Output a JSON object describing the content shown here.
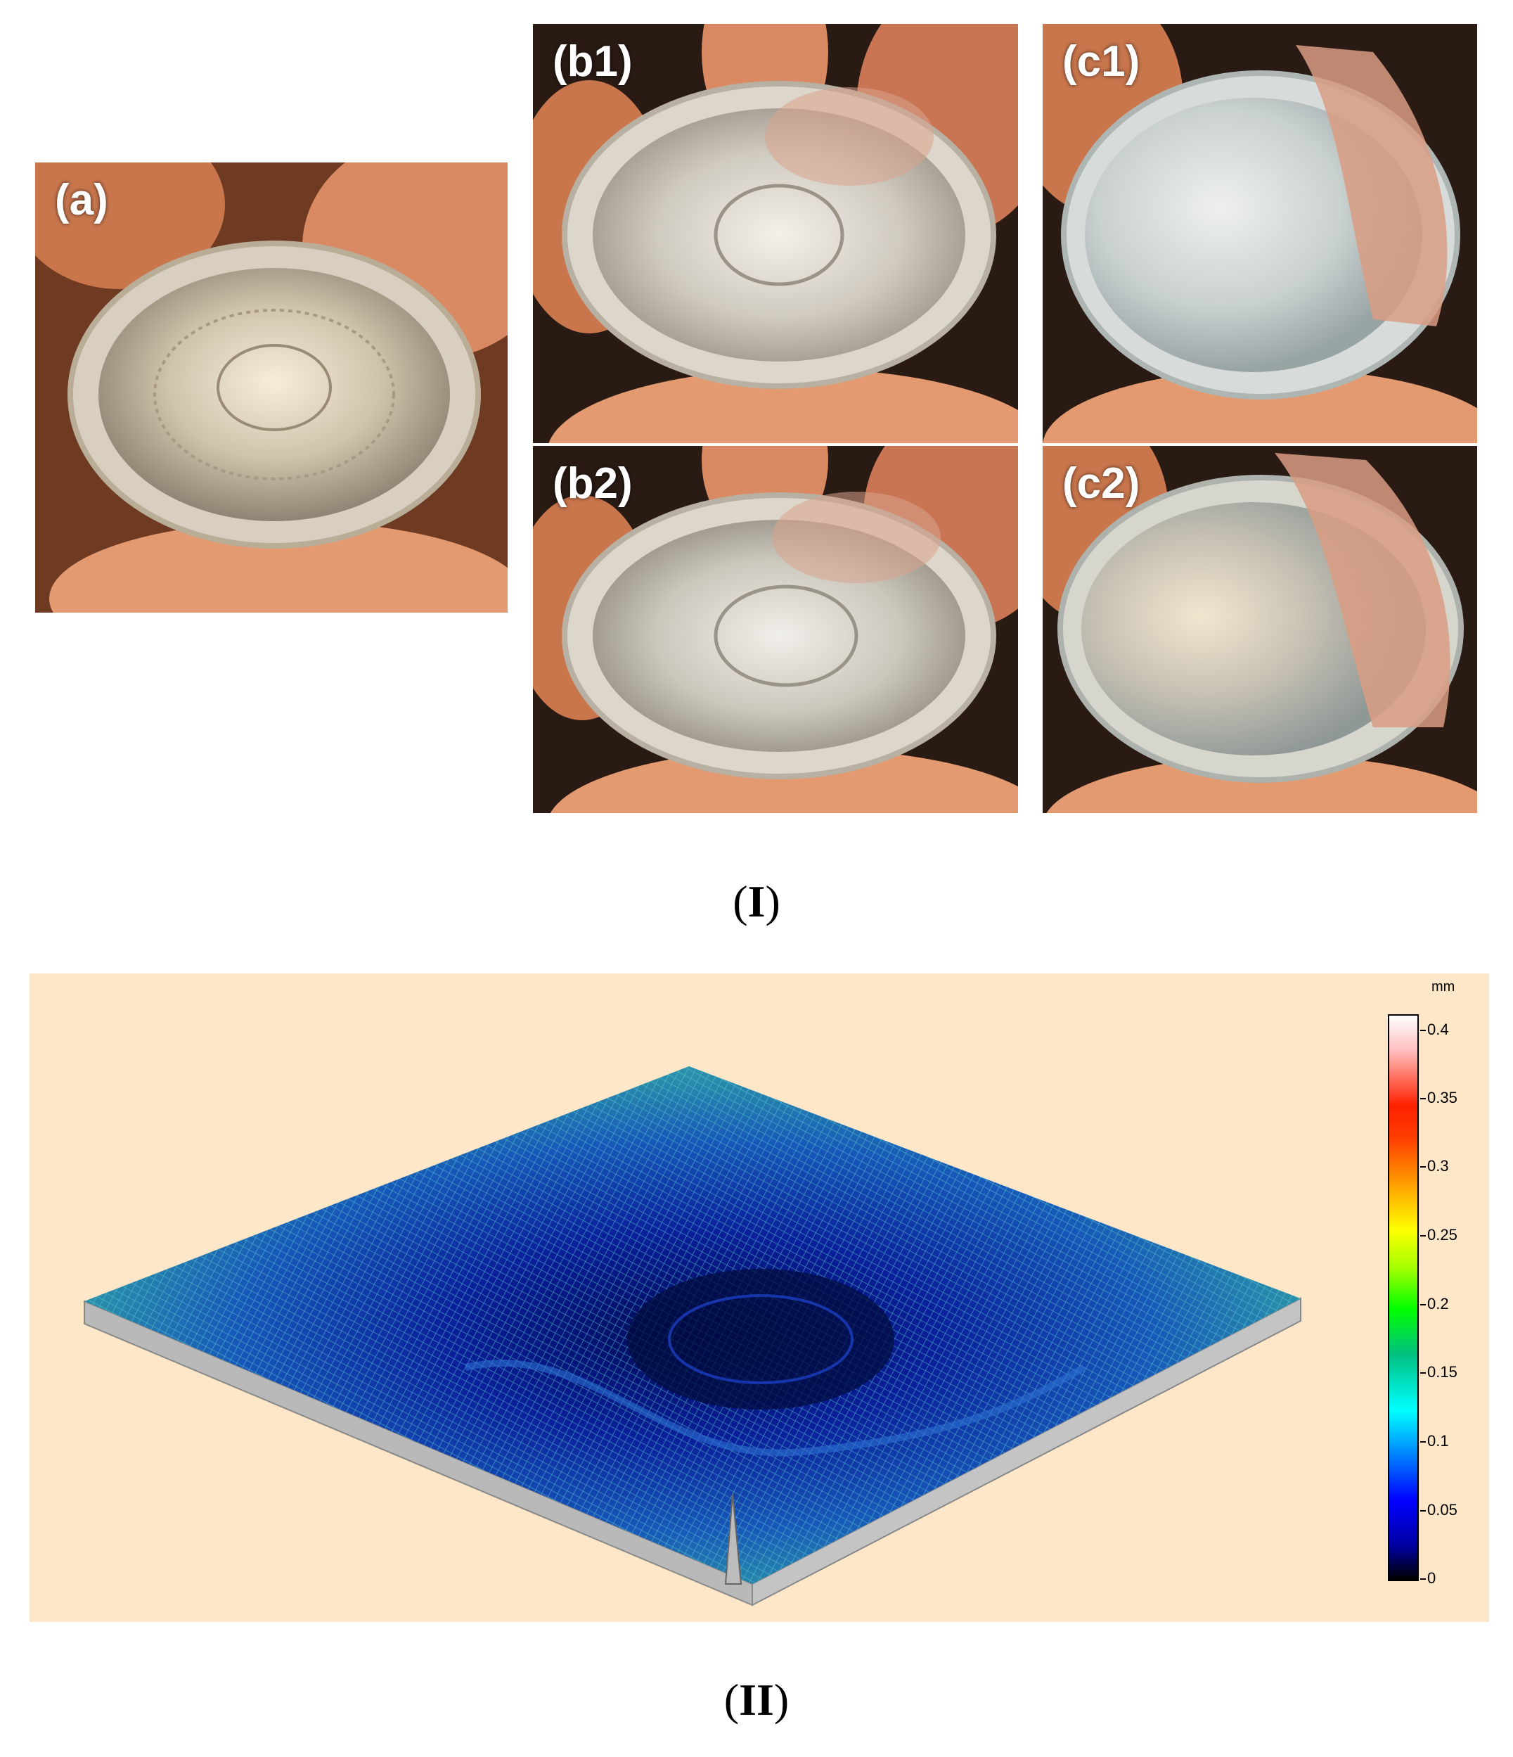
{
  "figure": {
    "part_one": {
      "label_open": "(",
      "label_numeral": "I",
      "label_close": ")",
      "panels": [
        {
          "id": "a",
          "label": "(a)"
        },
        {
          "id": "b1",
          "label": "(b1)"
        },
        {
          "id": "b2",
          "label": "(b2)"
        },
        {
          "id": "c1",
          "label": "(c1)"
        },
        {
          "id": "c2",
          "label": "(c2)"
        }
      ]
    },
    "part_two": {
      "label_open": "(",
      "label_numeral": "II",
      "label_close": ")",
      "background_color": "#fde7c8",
      "colorbar": {
        "unit": "mm",
        "ticks": [
          "0.4",
          "0.35",
          "0.3",
          "0.25",
          "0.2",
          "0.15",
          "0.1",
          "0.05",
          "0"
        ],
        "range": [
          0,
          0.4
        ]
      }
    }
  }
}
